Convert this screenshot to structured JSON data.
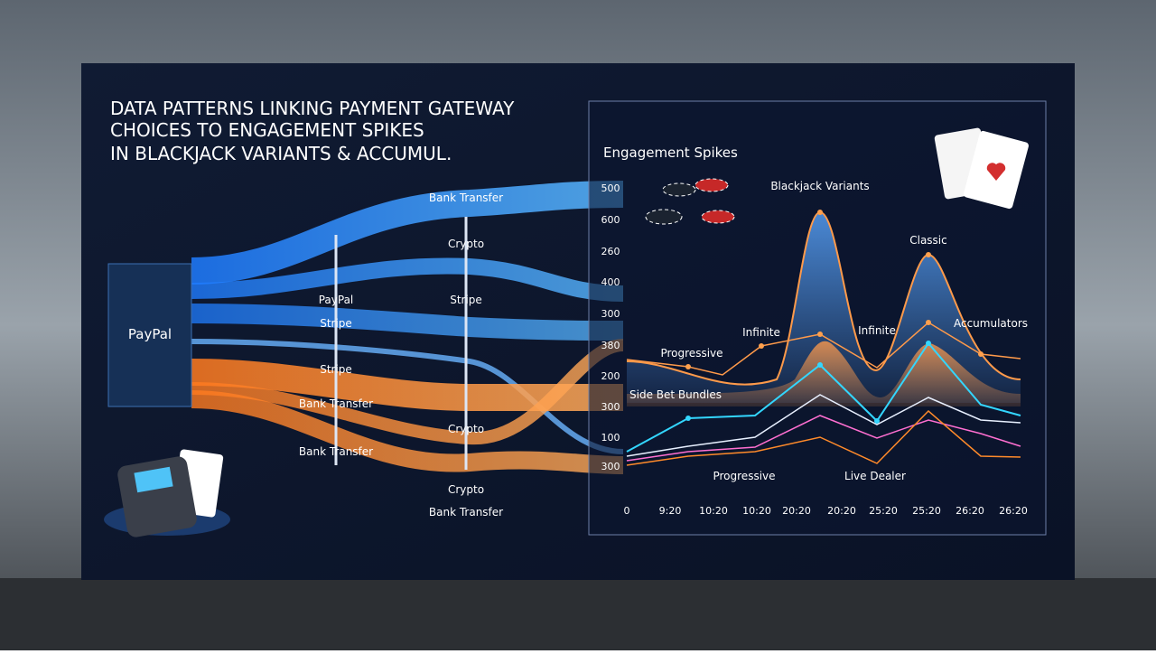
{
  "title": {
    "lines": [
      "DATA PATTERNS LINKING PAYMENT GATEWAY",
      "CHOICES TO ENGAGEMENT SPIKES",
      "IN BLACKJACK VARIANTS & ACCUMUL."
    ]
  },
  "sankey": {
    "source": "PayPal",
    "labels": [
      {
        "text": "Bank Transfer"
      },
      {
        "text": "Crypto"
      },
      {
        "text": "PayPal"
      },
      {
        "text": "Stripe"
      },
      {
        "text": "Stripe"
      },
      {
        "text": "Stripe"
      },
      {
        "text": "Bank Transfer"
      },
      {
        "text": "Crypto"
      },
      {
        "text": "Bank Transfer"
      },
      {
        "text": "Crypto"
      },
      {
        "text": "Bank Transfer"
      }
    ]
  },
  "chart": {
    "title": "Engagement Spikes",
    "y_labels": [
      "500",
      "600",
      "260",
      "400",
      "300",
      "380",
      "200",
      "300",
      "100",
      "300"
    ],
    "x_labels": [
      "0",
      "9:20",
      "10:20",
      "10:20",
      "20:20",
      "20:20",
      "25:20",
      "25:20",
      "26:20",
      "26:20"
    ],
    "annotations": [
      "Blackjack Variants",
      "Classic",
      "Infinite",
      "Infinite",
      "Progressive",
      "Accumulators",
      "Side Bet Bundles",
      "Progressive",
      "Live Dealer"
    ]
  }
}
